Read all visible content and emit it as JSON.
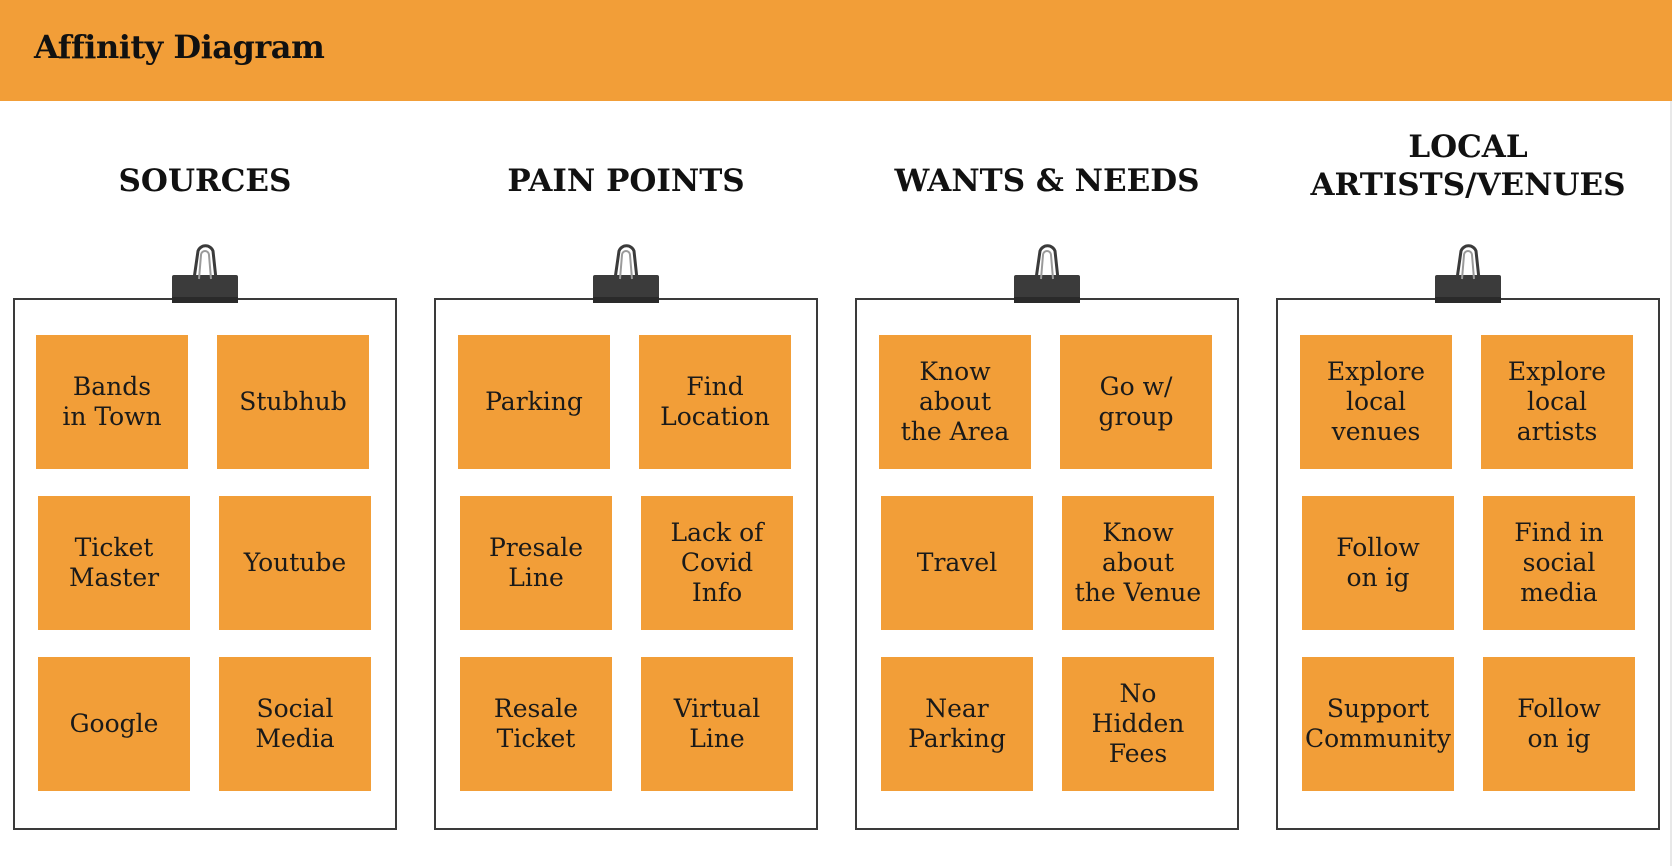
{
  "header": {
    "title": "Affinity Diagram",
    "color": "#F29E38"
  },
  "columns": [
    {
      "heading": "SOURCES",
      "notes": [
        "Bands\nin Town",
        "Stubhub",
        "Ticket\nMaster",
        "Youtube",
        "Google",
        "Social\nMedia"
      ]
    },
    {
      "heading": "PAIN POINTS",
      "notes": [
        "Parking",
        "Find\nLocation",
        "Presale\nLine",
        "Lack of\nCovid\nInfo",
        "Resale\nTicket",
        "Virtual\nLine"
      ]
    },
    {
      "heading": "WANTS & NEEDS",
      "notes": [
        "Know about\nthe Area",
        "Go w/\ngroup",
        "Travel",
        "Know about\nthe Venue",
        "Near\nParking",
        "No\nHidden\nFees"
      ]
    },
    {
      "heading": "LOCAL\nARTISTS/VENUES",
      "notes": [
        "Explore\nlocal\nvenues",
        "Explore\nlocal\nartists",
        "Follow\non ig",
        "Find in\nsocial\nmedia",
        "Support\nCommunity",
        "Follow\non ig"
      ]
    }
  ],
  "icons": {
    "clip": "binder-clip-icon"
  },
  "colors": {
    "note": "#F29E38",
    "board_border": "#3a3a3a",
    "clip": "#3b3b3b"
  }
}
